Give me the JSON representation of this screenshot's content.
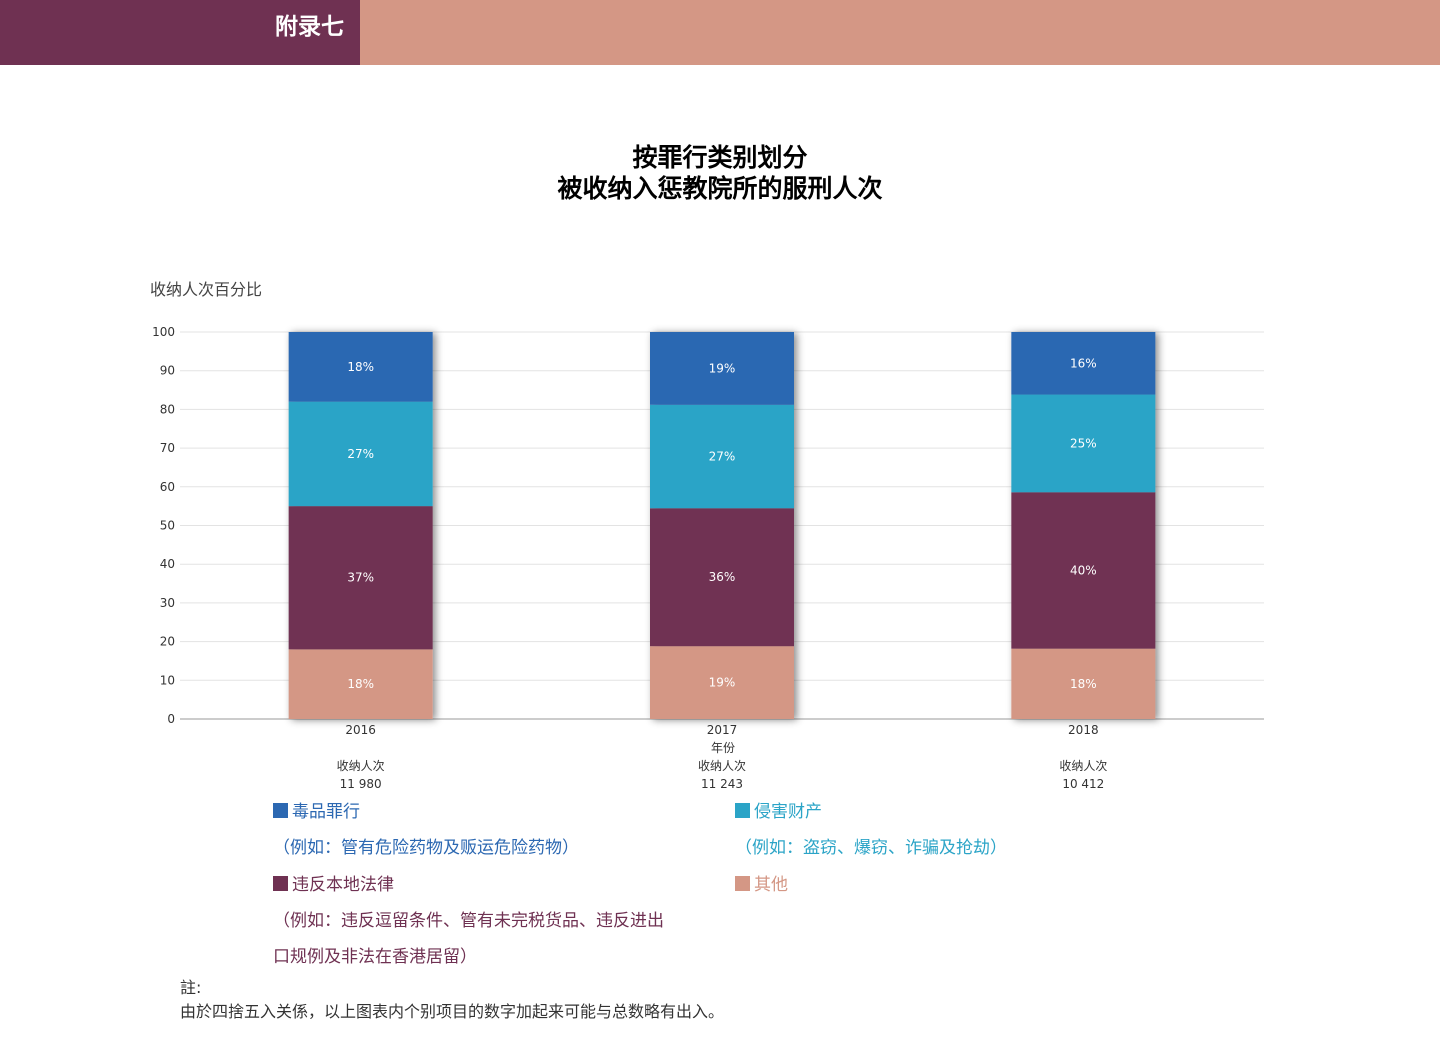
{
  "header": {
    "appendix_label": "附录七"
  },
  "title": {
    "line1": "按罪行类别划分",
    "line2": "被收纳入惩教院所的服刑人次"
  },
  "colors": {
    "drug": "#2c68b2",
    "property": "#2ba4c7",
    "law": "#6f3152",
    "other": "#d49785",
    "header_tab": "#6f3152",
    "header_band": "#d49785"
  },
  "chart_data": {
    "type": "bar",
    "stacked": true,
    "ylabel": "收纳人次百分比",
    "xlabel": "年份",
    "ylim": [
      0,
      100
    ],
    "yticks": [
      "0",
      "10",
      "20",
      "30",
      "40",
      "50",
      "60",
      "70",
      "80",
      "90",
      "100"
    ],
    "categories": [
      "2016",
      "2017",
      "2018"
    ],
    "admission_label": "收纳人次",
    "admissions": [
      "11 980",
      "11 243",
      "10 412"
    ],
    "series": [
      {
        "key": "other",
        "values": [
          18,
          19,
          18
        ],
        "labels": [
          "18%",
          "19%",
          "18%"
        ]
      },
      {
        "key": "law",
        "values": [
          37,
          36,
          40
        ],
        "labels": [
          "37%",
          "36%",
          "40%"
        ]
      },
      {
        "key": "property",
        "values": [
          27,
          27,
          25
        ],
        "labels": [
          "27%",
          "27%",
          "25%"
        ]
      },
      {
        "key": "drug",
        "values": [
          18,
          19,
          16
        ],
        "labels": [
          "18%",
          "19%",
          "16%"
        ]
      }
    ],
    "grid": true
  },
  "legend": {
    "drug": {
      "name": "毒品罪行",
      "note": "（例如：管有危险药物及贩运危险药物）"
    },
    "property": {
      "name": "侵害财产",
      "note": "（例如：盗窃、爆窃、诈骗及抢劫）"
    },
    "law": {
      "name": "违反本地法律",
      "note_line1": "（例如：违反逗留条件、管有未完税货品、违反进出",
      "note_line2": "口规例及非法在香港居留）"
    },
    "other": {
      "name": "其他"
    }
  },
  "footnote": {
    "title": "註:",
    "text": "由於四捨五入关係，以上图表内个别项目的数字加起来可能与总数略有出入。"
  }
}
